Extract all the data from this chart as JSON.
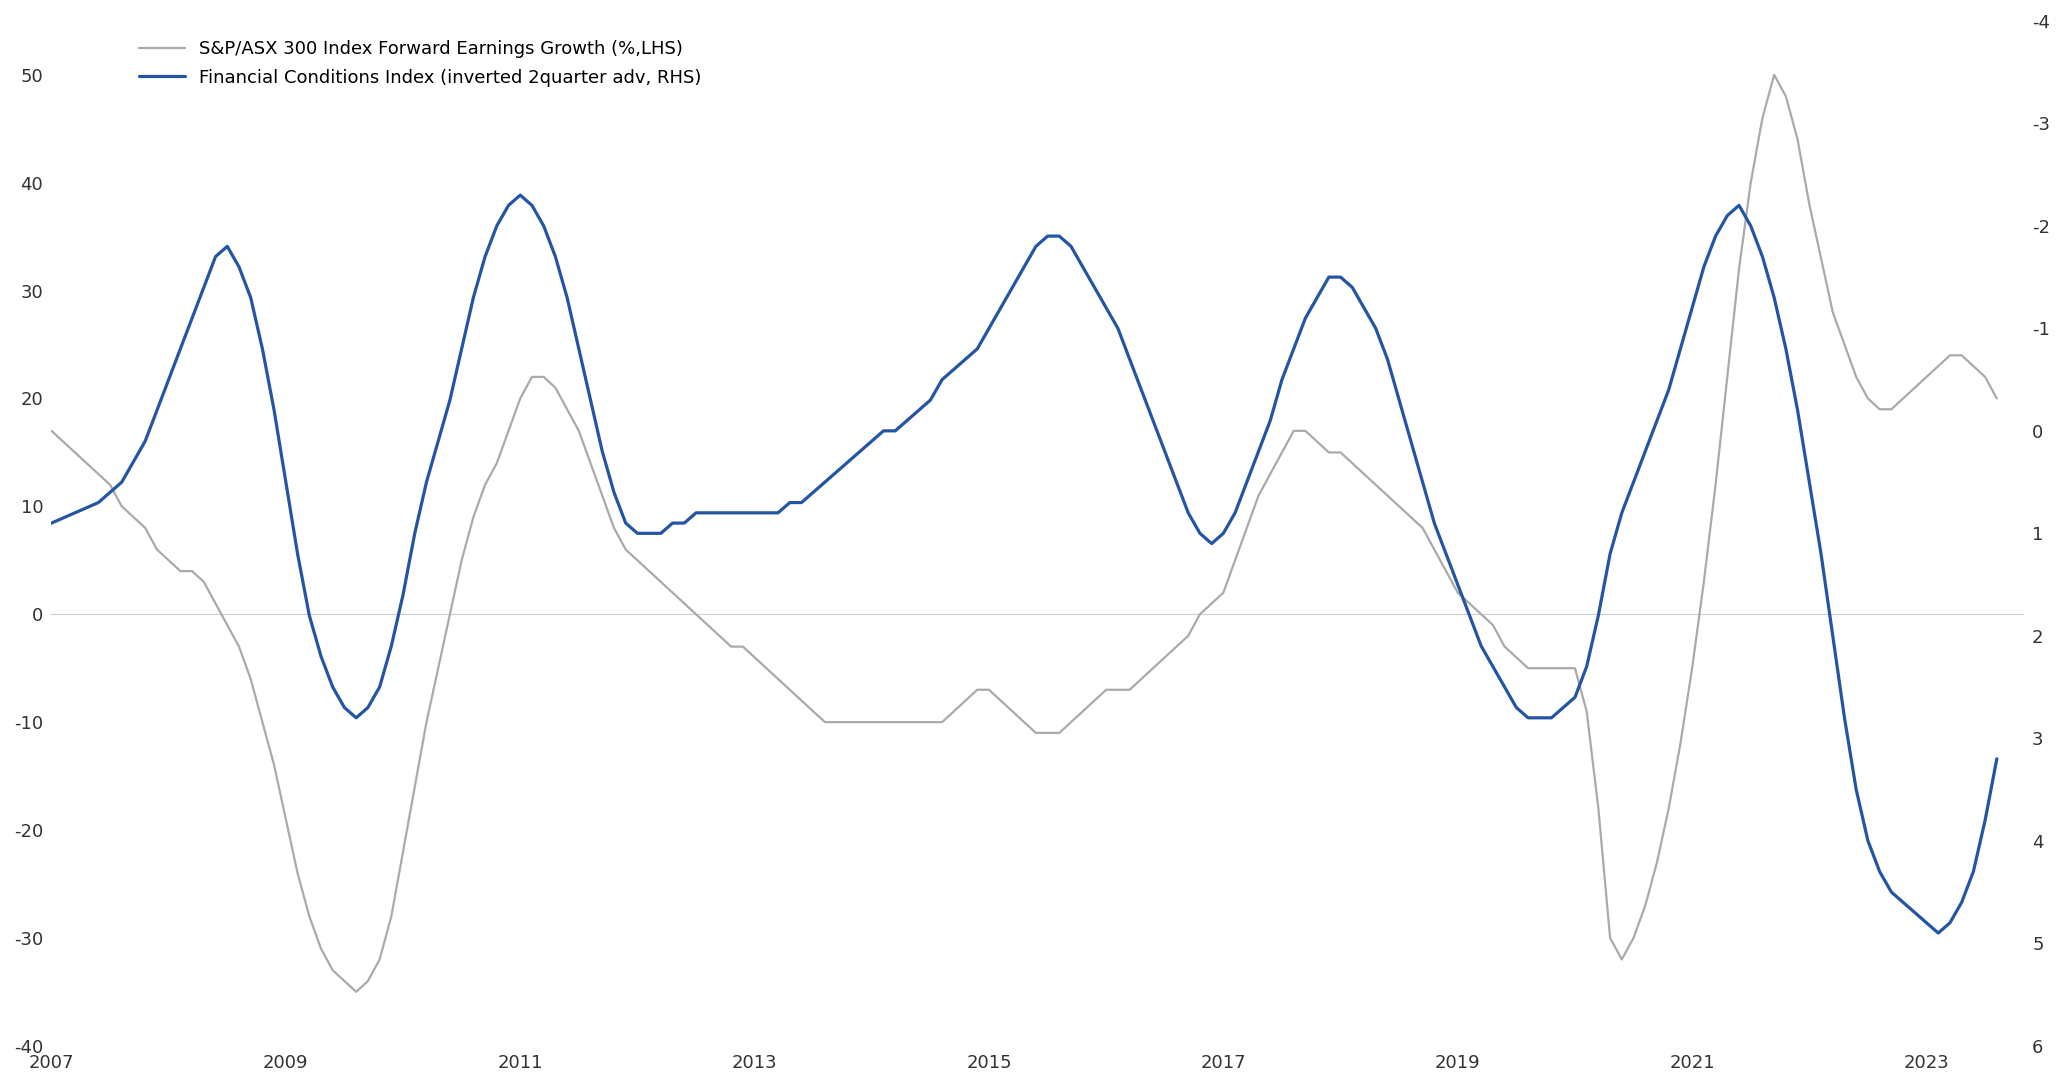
{
  "legend1": "S&P/ASX 300 Index Forward Earnings Growth (%,LHS)",
  "legend2": "Financial Conditions Index (inverted 2quarter adv, RHS)",
  "lhs_color": "#aaaaaa",
  "rhs_color": "#2455a4",
  "lhs_linewidth": 1.6,
  "rhs_linewidth": 2.3,
  "ylim_left": [
    -40,
    55
  ],
  "ylim_right": [
    6,
    -4
  ],
  "yticks_left": [
    -40,
    -30,
    -20,
    -10,
    0,
    10,
    20,
    30,
    40,
    50
  ],
  "yticks_right": [
    6,
    5,
    4,
    3,
    2,
    1,
    0,
    -1,
    -2,
    -3,
    -4
  ],
  "xlim": [
    2007.0,
    2023.83
  ],
  "xticks": [
    2007,
    2009,
    2011,
    2013,
    2015,
    2017,
    2019,
    2021,
    2023
  ],
  "background_color": "#ffffff",
  "grid_color": "#cccccc",
  "lhs_x": [
    2007.0,
    2007.1,
    2007.2,
    2007.3,
    2007.4,
    2007.5,
    2007.6,
    2007.7,
    2007.8,
    2007.9,
    2008.0,
    2008.1,
    2008.2,
    2008.3,
    2008.4,
    2008.5,
    2008.6,
    2008.7,
    2008.8,
    2008.9,
    2009.0,
    2009.1,
    2009.2,
    2009.3,
    2009.4,
    2009.5,
    2009.6,
    2009.7,
    2009.8,
    2009.9,
    2010.0,
    2010.1,
    2010.2,
    2010.3,
    2010.4,
    2010.5,
    2010.6,
    2010.7,
    2010.8,
    2010.9,
    2011.0,
    2011.1,
    2011.2,
    2011.3,
    2011.4,
    2011.5,
    2011.6,
    2011.7,
    2011.8,
    2011.9,
    2012.0,
    2012.1,
    2012.2,
    2012.3,
    2012.4,
    2012.5,
    2012.6,
    2012.7,
    2012.8,
    2012.9,
    2013.0,
    2013.1,
    2013.2,
    2013.3,
    2013.4,
    2013.5,
    2013.6,
    2013.7,
    2013.8,
    2013.9,
    2014.0,
    2014.1,
    2014.2,
    2014.3,
    2014.4,
    2014.5,
    2014.6,
    2014.7,
    2014.8,
    2014.9,
    2015.0,
    2015.1,
    2015.2,
    2015.3,
    2015.4,
    2015.5,
    2015.6,
    2015.7,
    2015.8,
    2015.9,
    2016.0,
    2016.1,
    2016.2,
    2016.3,
    2016.4,
    2016.5,
    2016.6,
    2016.7,
    2016.8,
    2016.9,
    2017.0,
    2017.1,
    2017.2,
    2017.3,
    2017.4,
    2017.5,
    2017.6,
    2017.7,
    2017.8,
    2017.9,
    2018.0,
    2018.1,
    2018.2,
    2018.3,
    2018.4,
    2018.5,
    2018.6,
    2018.7,
    2018.8,
    2018.9,
    2019.0,
    2019.1,
    2019.2,
    2019.3,
    2019.4,
    2019.5,
    2019.6,
    2019.7,
    2019.8,
    2019.9,
    2020.0,
    2020.1,
    2020.2,
    2020.3,
    2020.4,
    2020.5,
    2020.6,
    2020.7,
    2020.8,
    2020.9,
    2021.0,
    2021.1,
    2021.2,
    2021.3,
    2021.4,
    2021.5,
    2021.6,
    2021.7,
    2021.8,
    2021.9,
    2022.0,
    2022.1,
    2022.2,
    2022.3,
    2022.4,
    2022.5,
    2022.6,
    2022.7,
    2022.8,
    2022.9,
    2023.0,
    2023.1,
    2023.2,
    2023.3,
    2023.4,
    2023.5,
    2023.6
  ],
  "lhs_y": [
    17,
    16,
    15,
    14,
    13,
    12,
    10,
    9,
    8,
    6,
    5,
    4,
    4,
    3,
    1,
    -1,
    -3,
    -6,
    -10,
    -14,
    -19,
    -24,
    -28,
    -31,
    -33,
    -34,
    -35,
    -34,
    -32,
    -28,
    -22,
    -16,
    -10,
    -5,
    0,
    5,
    9,
    12,
    14,
    17,
    20,
    22,
    22,
    21,
    19,
    17,
    14,
    11,
    8,
    6,
    5,
    4,
    3,
    2,
    1,
    0,
    -1,
    -2,
    -3,
    -3,
    -4,
    -5,
    -6,
    -7,
    -8,
    -9,
    -10,
    -10,
    -10,
    -10,
    -10,
    -10,
    -10,
    -10,
    -10,
    -10,
    -10,
    -9,
    -8,
    -7,
    -7,
    -8,
    -9,
    -10,
    -11,
    -11,
    -11,
    -10,
    -9,
    -8,
    -7,
    -7,
    -7,
    -6,
    -5,
    -4,
    -3,
    -2,
    0,
    1,
    2,
    5,
    8,
    11,
    13,
    15,
    17,
    17,
    16,
    15,
    15,
    14,
    13,
    12,
    11,
    10,
    9,
    8,
    6,
    4,
    2,
    1,
    0,
    -1,
    -3,
    -4,
    -5,
    -5,
    -5,
    -5,
    -5,
    -9,
    -18,
    -30,
    -32,
    -30,
    -27,
    -23,
    -18,
    -12,
    -5,
    3,
    12,
    22,
    32,
    40,
    46,
    50,
    48,
    44,
    38,
    33,
    28,
    25,
    22,
    20,
    19,
    19,
    20,
    21,
    22,
    23,
    24,
    24,
    23,
    22,
    20
  ],
  "rhs_x": [
    2007.0,
    2007.1,
    2007.2,
    2007.3,
    2007.4,
    2007.5,
    2007.6,
    2007.7,
    2007.8,
    2007.9,
    2008.0,
    2008.1,
    2008.2,
    2008.3,
    2008.4,
    2008.5,
    2008.6,
    2008.7,
    2008.8,
    2008.9,
    2009.0,
    2009.1,
    2009.2,
    2009.3,
    2009.4,
    2009.5,
    2009.6,
    2009.7,
    2009.8,
    2009.9,
    2010.0,
    2010.1,
    2010.2,
    2010.3,
    2010.4,
    2010.5,
    2010.6,
    2010.7,
    2010.8,
    2010.9,
    2011.0,
    2011.1,
    2011.2,
    2011.3,
    2011.4,
    2011.5,
    2011.6,
    2011.7,
    2011.8,
    2011.9,
    2012.0,
    2012.1,
    2012.2,
    2012.3,
    2012.4,
    2012.5,
    2012.6,
    2012.7,
    2012.8,
    2012.9,
    2013.0,
    2013.1,
    2013.2,
    2013.3,
    2013.4,
    2013.5,
    2013.6,
    2013.7,
    2013.8,
    2013.9,
    2014.0,
    2014.1,
    2014.2,
    2014.3,
    2014.4,
    2014.5,
    2014.6,
    2014.7,
    2014.8,
    2014.9,
    2015.0,
    2015.1,
    2015.2,
    2015.3,
    2015.4,
    2015.5,
    2015.6,
    2015.7,
    2015.8,
    2015.9,
    2016.0,
    2016.1,
    2016.2,
    2016.3,
    2016.4,
    2016.5,
    2016.6,
    2016.7,
    2016.8,
    2016.9,
    2017.0,
    2017.1,
    2017.2,
    2017.3,
    2017.4,
    2017.5,
    2017.6,
    2017.7,
    2017.8,
    2017.9,
    2018.0,
    2018.1,
    2018.2,
    2018.3,
    2018.4,
    2018.5,
    2018.6,
    2018.7,
    2018.8,
    2018.9,
    2019.0,
    2019.1,
    2019.2,
    2019.3,
    2019.4,
    2019.5,
    2019.6,
    2019.7,
    2019.8,
    2019.9,
    2020.0,
    2020.1,
    2020.2,
    2020.3,
    2020.4,
    2020.5,
    2020.6,
    2020.7,
    2020.8,
    2020.9,
    2021.0,
    2021.1,
    2021.2,
    2021.3,
    2021.4,
    2021.5,
    2021.6,
    2021.7,
    2021.8,
    2021.9,
    2022.0,
    2022.1,
    2022.2,
    2022.3,
    2022.4,
    2022.5,
    2022.6,
    2022.7,
    2022.8,
    2022.9,
    2023.0,
    2023.1,
    2023.2,
    2023.3,
    2023.4,
    2023.5,
    2023.6
  ],
  "rhs_y": [
    0.9,
    0.85,
    0.8,
    0.75,
    0.7,
    0.6,
    0.5,
    0.3,
    0.1,
    -0.2,
    -0.5,
    -0.8,
    -1.1,
    -1.4,
    -1.7,
    -1.8,
    -1.6,
    -1.3,
    -0.8,
    -0.2,
    0.5,
    1.2,
    1.8,
    2.2,
    2.5,
    2.7,
    2.8,
    2.7,
    2.5,
    2.1,
    1.6,
    1.0,
    0.5,
    0.1,
    -0.3,
    -0.8,
    -1.3,
    -1.7,
    -2.0,
    -2.2,
    -2.3,
    -2.2,
    -2.0,
    -1.7,
    -1.3,
    -0.8,
    -0.3,
    0.2,
    0.6,
    0.9,
    1.0,
    1.0,
    1.0,
    0.9,
    0.9,
    0.8,
    0.8,
    0.8,
    0.8,
    0.8,
    0.8,
    0.8,
    0.8,
    0.7,
    0.7,
    0.6,
    0.5,
    0.4,
    0.3,
    0.2,
    0.1,
    0.0,
    0.0,
    -0.1,
    -0.2,
    -0.3,
    -0.5,
    -0.6,
    -0.7,
    -0.8,
    -1.0,
    -1.2,
    -1.4,
    -1.6,
    -1.8,
    -1.9,
    -1.9,
    -1.8,
    -1.6,
    -1.4,
    -1.2,
    -1.0,
    -0.7,
    -0.4,
    -0.1,
    0.2,
    0.5,
    0.8,
    1.0,
    1.1,
    1.0,
    0.8,
    0.5,
    0.2,
    -0.1,
    -0.5,
    -0.8,
    -1.1,
    -1.3,
    -1.5,
    -1.5,
    -1.4,
    -1.2,
    -1.0,
    -0.7,
    -0.3,
    0.1,
    0.5,
    0.9,
    1.2,
    1.5,
    1.8,
    2.1,
    2.3,
    2.5,
    2.7,
    2.8,
    2.8,
    2.8,
    2.7,
    2.6,
    2.3,
    1.8,
    1.2,
    0.8,
    0.5,
    0.2,
    -0.1,
    -0.4,
    -0.8,
    -1.2,
    -1.6,
    -1.9,
    -2.1,
    -2.2,
    -2.0,
    -1.7,
    -1.3,
    -0.8,
    -0.2,
    0.5,
    1.2,
    2.0,
    2.8,
    3.5,
    4.0,
    4.3,
    4.5,
    4.6,
    4.7,
    4.8,
    4.9,
    4.8,
    4.6,
    4.3,
    3.8,
    3.2
  ]
}
